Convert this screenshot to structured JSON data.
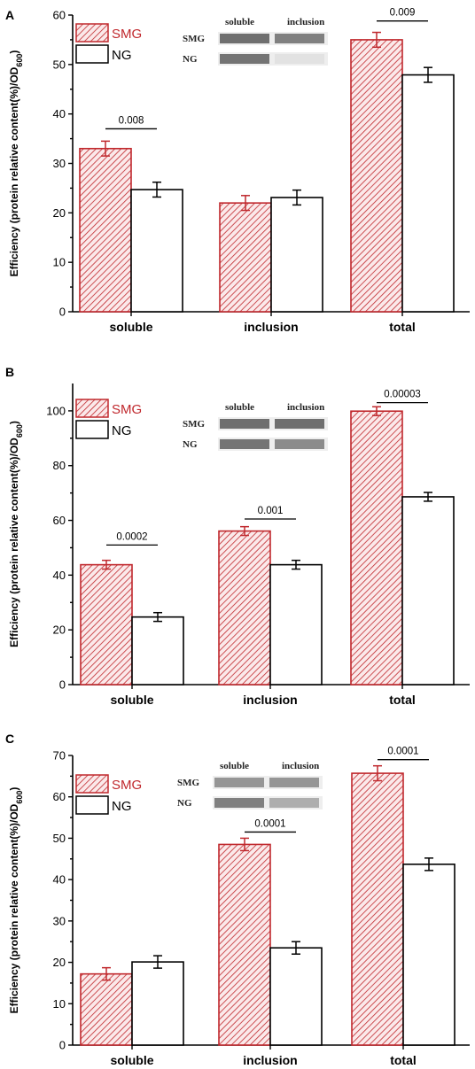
{
  "colors": {
    "smg_stroke": "#c0282d",
    "smg_fill": "#fbe9ea",
    "ng_stroke": "#000000",
    "ng_fill": "#ffffff",
    "err_smg": "#c0282d",
    "err_ng": "#000000"
  },
  "chart_data": [
    {
      "panel": "A",
      "type": "bar",
      "categories": [
        "soluble",
        "inclusion",
        "total"
      ],
      "ylabel_main": "Efficiency (protein relative content(%)/OD",
      "ylabel_sub": "600",
      "ylabel_end": ")",
      "ylim": [
        0,
        60
      ],
      "yticks": [
        0,
        10,
        20,
        30,
        40,
        50,
        60
      ],
      "grid": false,
      "legend_position": "top-left",
      "series": [
        {
          "name": "SMG",
          "values": [
            33,
            22,
            55
          ],
          "errors": [
            1.5,
            1.5,
            1.5
          ]
        },
        {
          "name": "NG",
          "values": [
            24.7,
            23.1,
            47.9
          ],
          "errors": [
            1.5,
            1.5,
            1.5
          ]
        }
      ],
      "annotations": [
        {
          "category": "soluble",
          "text": "0.008",
          "y": 37
        },
        {
          "category": "total",
          "text": "0.009",
          "y": 58.8
        }
      ],
      "blot": {
        "col1": "soluble",
        "col2": "inclusion",
        "row1": "SMG",
        "row2": "NG",
        "intensity": [
          [
            0.62,
            0.55
          ],
          [
            0.6,
            0.12
          ]
        ]
      }
    },
    {
      "panel": "B",
      "type": "bar",
      "categories": [
        "soluble",
        "inclusion",
        "total"
      ],
      "ylabel_main": "Efficiency (protein relative content(%)/OD",
      "ylabel_sub": "600",
      "ylabel_end": ")",
      "ylim": [
        0,
        110
      ],
      "yticks": [
        0,
        20,
        40,
        60,
        80,
        100
      ],
      "grid": false,
      "legend_position": "top-left",
      "series": [
        {
          "name": "SMG",
          "values": [
            43.8,
            56.1,
            99.9
          ],
          "errors": [
            1.6,
            1.6,
            1.6
          ]
        },
        {
          "name": "NG",
          "values": [
            24.7,
            43.8,
            68.6
          ],
          "errors": [
            1.6,
            1.6,
            1.6
          ]
        }
      ],
      "annotations": [
        {
          "category": "soluble",
          "text": "0.0002",
          "y": 51
        },
        {
          "category": "inclusion",
          "text": "0.001",
          "y": 60.5
        },
        {
          "category": "total",
          "text": "0.00003",
          "y": 103
        }
      ],
      "blot": {
        "col1": "soluble",
        "col2": "inclusion",
        "row1": "SMG",
        "row2": "NG",
        "intensity": [
          [
            0.62,
            0.62
          ],
          [
            0.6,
            0.5
          ]
        ]
      }
    },
    {
      "panel": "C",
      "type": "bar",
      "categories": [
        "soluble",
        "inclusion",
        "total"
      ],
      "ylabel_main": "Efficiency (protein relative content(%)/OD",
      "ylabel_sub": "600",
      "ylabel_end": ")",
      "ylim": [
        0,
        70
      ],
      "yticks": [
        0,
        10,
        20,
        30,
        40,
        50,
        60,
        70
      ],
      "grid": false,
      "legend_position": "top-left",
      "series": [
        {
          "name": "SMG",
          "values": [
            17.2,
            48.5,
            65.7
          ],
          "errors": [
            1.5,
            1.5,
            1.8
          ]
        },
        {
          "name": "NG",
          "values": [
            20.1,
            23.5,
            43.7
          ],
          "errors": [
            1.5,
            1.5,
            1.5
          ]
        }
      ],
      "annotations": [
        {
          "category": "inclusion",
          "text": "0.0001",
          "y": 51.5
        },
        {
          "category": "total",
          "text": "0.0001",
          "y": 69
        }
      ],
      "blot": {
        "col1": "soluble",
        "col2": "inclusion",
        "row1": "SMG",
        "row2": "NG",
        "intensity": [
          [
            0.45,
            0.45
          ],
          [
            0.55,
            0.35
          ]
        ]
      }
    }
  ]
}
